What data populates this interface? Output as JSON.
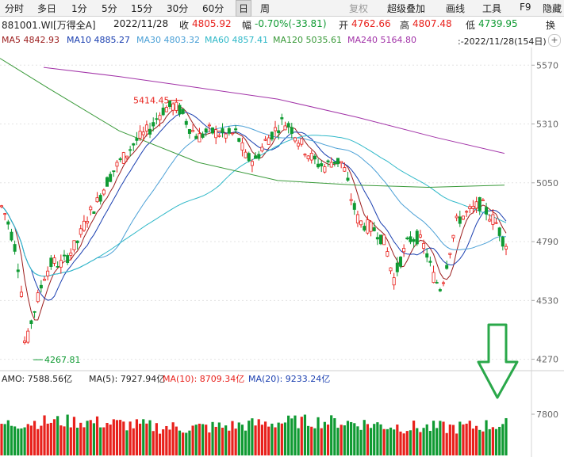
{
  "toolbar": {
    "periods": [
      "分时",
      "多日",
      "1分",
      "5分",
      "15分",
      "30分",
      "60分",
      "日",
      "周"
    ],
    "active_period": "日",
    "tools": [
      "复权",
      "超级叠加",
      "画线",
      "工具",
      "F9",
      "隐藏"
    ]
  },
  "info": {
    "code_name": "881001.WI[万得全A]",
    "date": "2022/11/28",
    "close_label": "收",
    "close": "4805.92",
    "change_label": "幅",
    "change": "-0.70%(-33.81)",
    "open_label": "开",
    "open": "4762.66",
    "high_label": "高",
    "high": "4807.48",
    "low_label": "低",
    "low": "4739.95",
    "extra_label": "换"
  },
  "ma_line": {
    "ma5": "MA5 4842.93",
    "ma10": "MA10 4885.27",
    "ma30": "MA30 4803.32",
    "ma60": "MA60 4857.41",
    "ma120": "MA120 5035.61",
    "ma240": "MA240 5164.80",
    "range": ":-2022/11/28(154日)"
  },
  "colors": {
    "up": "#e8211c",
    "down": "#0f9a32",
    "ma5": "#9b1c1c",
    "ma10": "#1a3fb0",
    "ma30": "#4ba0d6",
    "ma60": "#2fb8c8",
    "ma120": "#3a9a3a",
    "ma240": "#a233a8",
    "arrow": "#2aa84a",
    "grid": "#e3e3e3",
    "axis_text": "#666666"
  },
  "chart_data": {
    "type": "candlestick",
    "y_ticks": [
      "5570",
      "5310",
      "5050",
      "4790",
      "4530",
      "4270"
    ],
    "ylim": [
      4230,
      5620
    ],
    "annotations": {
      "high_label": "5414.45",
      "low_label": "4267.81"
    },
    "volume_panel": {
      "amo": "AMO: 7588.56亿",
      "ma5": "MA(5): 7927.94亿",
      "ma10": "MA(10): 8709.34亿",
      "ma20": "MA(20): 9233.24亿",
      "y_tick": "7800"
    }
  }
}
